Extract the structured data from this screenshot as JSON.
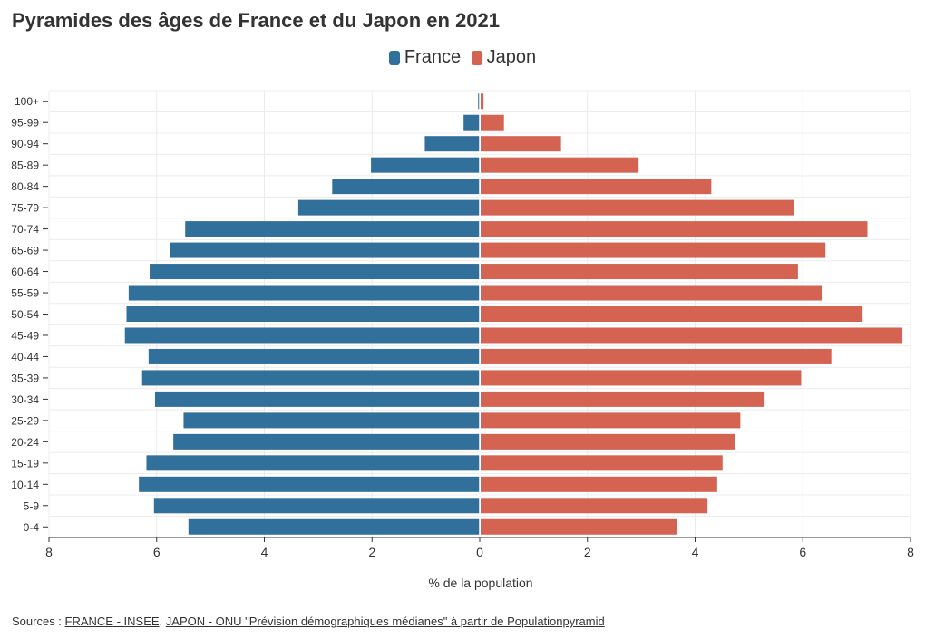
{
  "title": "Pyramides des âges de France et du Japon en 2021",
  "legend": [
    {
      "name": "France",
      "color": "#31709a"
    },
    {
      "name": "Japon",
      "color": "#d46352"
    }
  ],
  "sources": {
    "prefix": "Sources : ",
    "link1": "FRANCE - INSEE",
    "sep": ", ",
    "link2": "JAPON - ONU \"Prévision démographiques médianes\" à partir de Populationpyramid"
  },
  "chart_data": {
    "type": "bar",
    "orientation": "horizontal-pyramid",
    "title": "Pyramides des âges de France et du Japon en 2021",
    "xlabel": "% de la population",
    "ylabel": "",
    "xlim": [
      -8,
      8
    ],
    "x_ticks": [
      -8,
      -6,
      -4,
      -2,
      0,
      2,
      4,
      6,
      8
    ],
    "x_tick_labels": [
      "8",
      "6",
      "4",
      "2",
      "0",
      "2",
      "4",
      "6",
      "8"
    ],
    "grid": true,
    "legend_position": "top-center",
    "categories": [
      "100+",
      "95-99",
      "90-94",
      "85-89",
      "80-84",
      "75-79",
      "70-74",
      "65-69",
      "60-64",
      "55-59",
      "50-54",
      "45-49",
      "40-44",
      "35-39",
      "30-34",
      "25-29",
      "20-24",
      "15-19",
      "10-14",
      "5-9",
      "0-4"
    ],
    "series": [
      {
        "name": "France",
        "color": "#31709a",
        "values": [
          0.03,
          0.3,
          1.02,
          2.02,
          2.74,
          3.37,
          5.47,
          5.76,
          6.13,
          6.52,
          6.56,
          6.59,
          6.15,
          6.27,
          6.03,
          5.5,
          5.69,
          6.19,
          6.33,
          6.05,
          5.41
        ]
      },
      {
        "name": "Japon",
        "color": "#d46352",
        "values": [
          0.07,
          0.45,
          1.51,
          2.95,
          4.3,
          5.83,
          7.2,
          6.42,
          5.91,
          6.35,
          7.11,
          7.85,
          6.53,
          5.97,
          5.29,
          4.84,
          4.74,
          4.51,
          4.41,
          4.23,
          3.67
        ]
      }
    ]
  }
}
